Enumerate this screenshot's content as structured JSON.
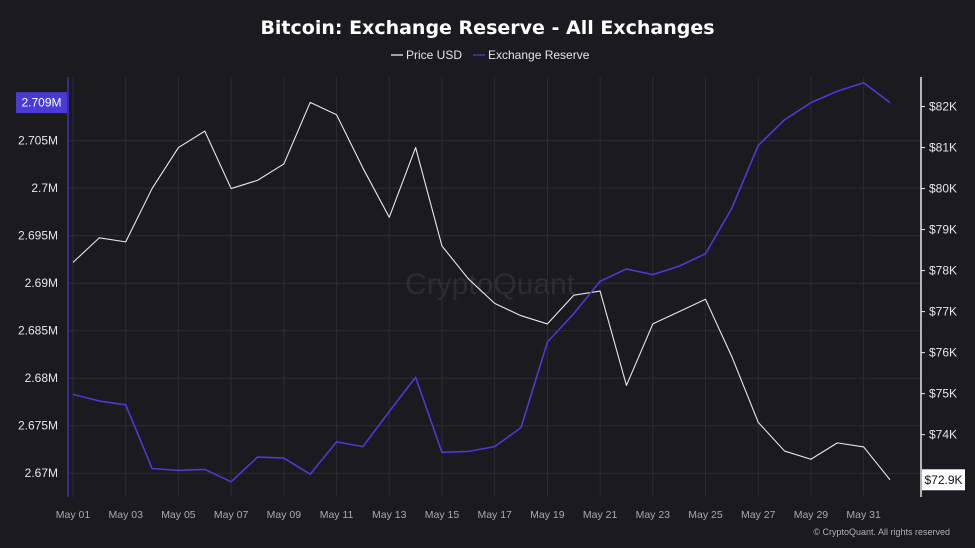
{
  "chart_data": {
    "type": "line",
    "title": "Bitcoin: Exchange Reserve - All Exchanges",
    "legend": {
      "placement": "top-center",
      "entries": [
        "Price USD",
        "Exchange Reserve"
      ]
    },
    "x": [
      "May 01",
      "May 02",
      "May 03",
      "May 04",
      "May 05",
      "May 06",
      "May 07",
      "May 08",
      "May 09",
      "May 10",
      "May 11",
      "May 12",
      "May 13",
      "May 14",
      "May 15",
      "May 16",
      "May 17",
      "May 18",
      "May 19",
      "May 20",
      "May 21",
      "May 22",
      "May 23",
      "May 24",
      "May 25",
      "May 26",
      "May 27",
      "May 28",
      "May 29",
      "May 30",
      "May 31",
      "Jun 01"
    ],
    "x_tick_labels": [
      "May 01",
      "May 03",
      "May 05",
      "May 07",
      "May 09",
      "May 11",
      "May 13",
      "May 15",
      "May 17",
      "May 19",
      "May 21",
      "May 23",
      "May 25",
      "May 27",
      "May 29",
      "May 31"
    ],
    "series": [
      {
        "name": "Price USD",
        "axis": "right",
        "color": "#e8e8e8",
        "values": [
          78.2,
          78.8,
          78.7,
          80.0,
          81.0,
          81.4,
          80.0,
          80.2,
          80.6,
          82.1,
          81.8,
          80.5,
          79.3,
          81.0,
          78.6,
          77.8,
          77.2,
          76.9,
          76.7,
          77.4,
          77.5,
          75.2,
          76.7,
          77.0,
          77.3,
          75.9,
          74.3,
          73.6,
          73.4,
          73.8,
          73.7,
          72.9
        ]
      },
      {
        "name": "Exchange Reserve",
        "axis": "left",
        "color": "#4b3bd6",
        "values": [
          2.6783,
          2.6776,
          2.6772,
          2.6705,
          2.6703,
          2.6704,
          2.6691,
          2.6717,
          2.6716,
          2.6699,
          2.6733,
          2.6728,
          2.6765,
          2.6801,
          2.6722,
          2.6723,
          2.6728,
          2.6748,
          2.6838,
          2.6868,
          2.6902,
          2.6915,
          2.6909,
          2.6918,
          2.6931,
          2.6979,
          2.7045,
          2.7072,
          2.709,
          2.7102,
          2.7111,
          2.709
        ]
      }
    ],
    "left_axis": {
      "ylim": [
        2.6675,
        2.7117
      ],
      "ticks": [
        "2.67M",
        "2.675M",
        "2.68M",
        "2.685M",
        "2.69M",
        "2.695M",
        "2.7M",
        "2.705M"
      ],
      "tick_values": [
        2.67,
        2.675,
        2.68,
        2.685,
        2.69,
        2.695,
        2.7,
        2.705
      ],
      "highlight_label": "2.709M",
      "highlight_value": 2.709
    },
    "right_axis": {
      "ylim": [
        72.48,
        82.72
      ],
      "ticks": [
        "$74K",
        "$75K",
        "$76K",
        "$77K",
        "$78K",
        "$79K",
        "$80K",
        "$81K",
        "$82K"
      ],
      "tick_values": [
        74,
        75,
        76,
        77,
        78,
        79,
        80,
        81,
        82
      ],
      "highlight_label": "$72.9K",
      "highlight_value": 72.9
    },
    "grid": true
  },
  "watermark": "CryptoQuant",
  "copyright": "© CryptoQuant. All rights reserved",
  "colors": {
    "background": "#1a1a1f",
    "grid": "#2c2c34",
    "price": "#e8e8e8",
    "reserve": "#4b3bd6"
  }
}
